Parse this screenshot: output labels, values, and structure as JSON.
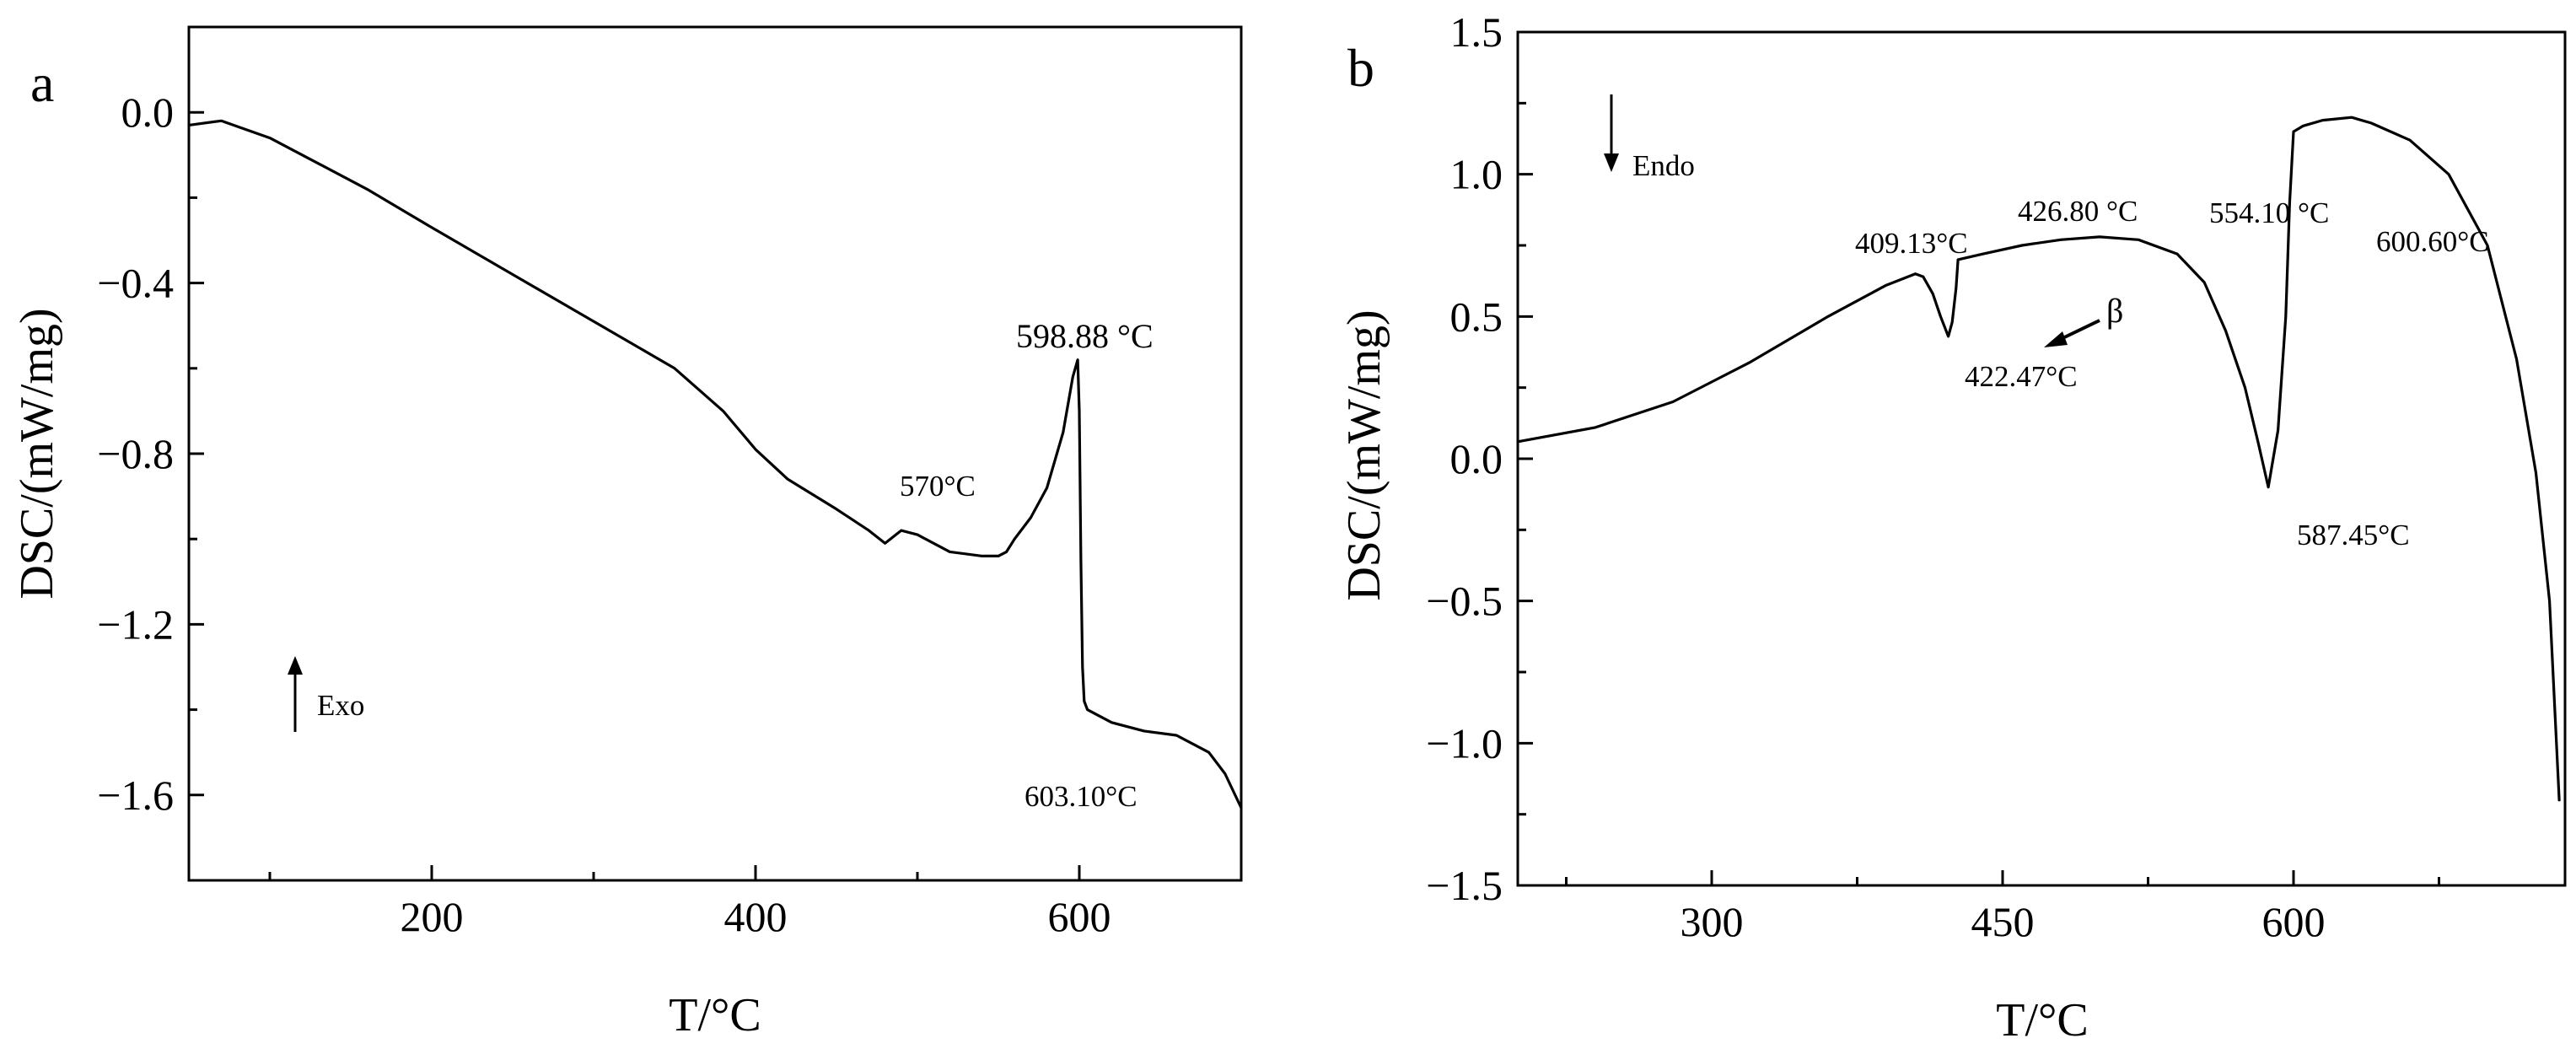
{
  "chart_data": [
    {
      "type": "line",
      "panel": "a",
      "xlabel": "T/°C",
      "ylabel": "DSC/(mW/mg)",
      "xlim": [
        50,
        700
      ],
      "ylim": [
        -1.8,
        0.2
      ],
      "xticks": [
        200,
        400,
        600
      ],
      "xtick_labels": [
        "200",
        "400",
        "600"
      ],
      "yticks": [
        0.0,
        -0.4,
        -0.8,
        -1.2,
        -1.6
      ],
      "ytick_labels": [
        "0.0",
        "−0.4",
        "−0.8",
        "−1.2",
        "−1.6"
      ],
      "series": [
        {
          "name": "DSC",
          "x": [
            50,
            70,
            100,
            130,
            160,
            200,
            250,
            300,
            350,
            380,
            400,
            420,
            450,
            470,
            480,
            490,
            500,
            520,
            540,
            550,
            555,
            560,
            570,
            580,
            590,
            596,
            599,
            600,
            601,
            602,
            603,
            605,
            610,
            620,
            640,
            660,
            680,
            690,
            700
          ],
          "y": [
            -0.03,
            -0.02,
            -0.06,
            -0.12,
            -0.18,
            -0.27,
            -0.38,
            -0.49,
            -0.6,
            -0.7,
            -0.79,
            -0.86,
            -0.93,
            -0.98,
            -1.01,
            -0.98,
            -0.99,
            -1.03,
            -1.04,
            -1.04,
            -1.03,
            -1.0,
            -0.95,
            -0.88,
            -0.75,
            -0.62,
            -0.58,
            -0.7,
            -1.05,
            -1.3,
            -1.38,
            -1.4,
            -1.41,
            -1.43,
            -1.45,
            -1.46,
            -1.5,
            -1.55,
            -1.63
          ]
        }
      ],
      "annotations": [
        {
          "text": "598.88 °C",
          "x": 599,
          "y": -0.58
        },
        {
          "text": "570°C",
          "x": 570,
          "y": -0.95
        },
        {
          "text": "603.10°C",
          "x": 603,
          "y": -1.38
        },
        {
          "text": "Exo",
          "direction": "up"
        }
      ]
    },
    {
      "type": "line",
      "panel": "b",
      "xlabel": "T/°C",
      "ylabel": "DSC/(mW/mg)",
      "xlim": [
        200,
        740
      ],
      "ylim": [
        -1.5,
        1.5
      ],
      "xticks": [
        300,
        450,
        600
      ],
      "xtick_labels": [
        "300",
        "450",
        "600"
      ],
      "yticks": [
        1.5,
        1.0,
        0.5,
        0.0,
        -0.5,
        -1.0,
        -1.5
      ],
      "ytick_labels": [
        "1.5",
        "1.0",
        "0.5",
        "0.0",
        "−0.5",
        "−1.0",
        "−1.5"
      ],
      "series": [
        {
          "name": "DSC",
          "x": [
            200,
            240,
            280,
            320,
            360,
            390,
            405,
            409,
            414,
            418,
            422,
            424,
            426,
            427,
            440,
            460,
            480,
            500,
            520,
            540,
            554,
            565,
            575,
            582,
            587,
            592,
            596,
            598,
            600,
            605,
            615,
            630,
            640,
            660,
            680,
            700,
            715,
            725,
            732,
            737
          ],
          "y": [
            0.06,
            0.11,
            0.2,
            0.34,
            0.5,
            0.61,
            0.65,
            0.64,
            0.58,
            0.5,
            0.43,
            0.48,
            0.6,
            0.7,
            0.72,
            0.75,
            0.77,
            0.78,
            0.77,
            0.72,
            0.62,
            0.45,
            0.25,
            0.05,
            -0.1,
            0.1,
            0.5,
            0.9,
            1.15,
            1.17,
            1.19,
            1.2,
            1.18,
            1.12,
            1.0,
            0.75,
            0.35,
            -0.05,
            -0.5,
            -1.2
          ]
        }
      ],
      "annotations": [
        {
          "text": "409.13°C",
          "x": 409,
          "y": 0.64
        },
        {
          "text": "426.80 °C",
          "x": 427,
          "y": 0.7
        },
        {
          "text": "554.10 °C",
          "x": 554,
          "y": 0.62
        },
        {
          "text": "600.60°C",
          "x": 600,
          "y": 1.15
        },
        {
          "text": "422.47°C",
          "x": 422,
          "y": 0.43
        },
        {
          "text": "587.45°C",
          "x": 587,
          "y": -0.1
        },
        {
          "text": "β",
          "x": 424,
          "y": 0.45
        },
        {
          "text": "Endo",
          "direction": "down"
        }
      ]
    }
  ]
}
